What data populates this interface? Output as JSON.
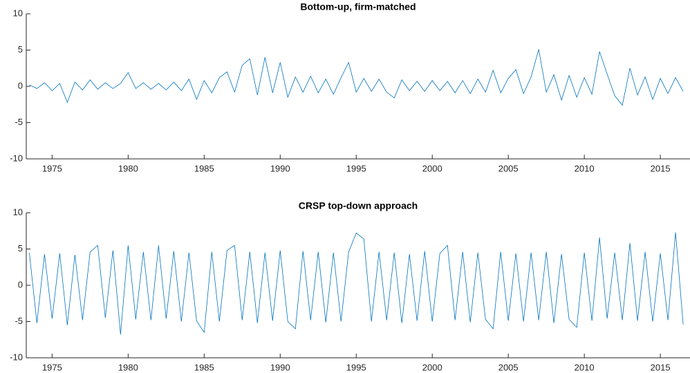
{
  "chart_data": [
    {
      "type": "line",
      "title": "Bottom-up, firm-matched",
      "color": "#0072BD",
      "xlim": [
        1973.3,
        2016.95
      ],
      "xticks": [
        1975,
        1980,
        1985,
        1990,
        1995,
        2000,
        2005,
        2010,
        2015
      ],
      "ylim": [
        -10,
        10
      ],
      "yticks": [
        -10,
        -5,
        0,
        5,
        10
      ],
      "x": [
        1973.5,
        1974,
        1974.5,
        1975,
        1975.5,
        1976,
        1976.5,
        1977,
        1977.5,
        1978,
        1978.5,
        1979,
        1979.5,
        1980,
        1980.5,
        1981,
        1981.5,
        1982,
        1982.5,
        1983,
        1983.5,
        1984,
        1984.5,
        1985,
        1985.5,
        1986,
        1986.5,
        1987,
        1987.5,
        1988,
        1988.5,
        1989,
        1989.5,
        1990,
        1990.5,
        1991,
        1991.5,
        1992,
        1992.5,
        1993,
        1993.5,
        1994,
        1994.5,
        1995,
        1995.5,
        1996,
        1996.5,
        1997,
        1997.5,
        1998,
        1998.5,
        1999,
        1999.5,
        2000,
        2000.5,
        2001,
        2001.5,
        2002,
        2002.5,
        2003,
        2003.5,
        2004,
        2004.5,
        2005,
        2005.5,
        2006,
        2006.5,
        2007,
        2007.5,
        2008,
        2008.5,
        2009,
        2009.5,
        2010,
        2010.5,
        2011,
        2011.5,
        2012,
        2012.5,
        2013,
        2013.5,
        2014,
        2014.5,
        2015,
        2015.5,
        2016,
        2016.5
      ],
      "values": [
        0.2,
        -0.3,
        0.5,
        -0.6,
        0.4,
        -2.2,
        0.6,
        -0.5,
        0.9,
        -0.4,
        0.5,
        -0.3,
        0.4,
        1.9,
        -0.3,
        0.5,
        -0.4,
        0.4,
        -0.5,
        0.6,
        -0.6,
        1.0,
        -1.8,
        0.8,
        -0.9,
        1.2,
        2.0,
        -0.8,
        2.9,
        3.8,
        -1.2,
        4.0,
        -0.9,
        3.3,
        -1.5,
        1.3,
        -0.8,
        1.4,
        -0.9,
        1.0,
        -1.1,
        1.2,
        3.3,
        -0.8,
        1.1,
        -0.7,
        1.0,
        -0.8,
        -1.6,
        0.9,
        -0.6,
        0.7,
        -0.7,
        0.8,
        -0.6,
        0.7,
        -0.9,
        0.8,
        -1.0,
        1.0,
        -0.8,
        2.2,
        -0.9,
        1.1,
        2.3,
        -1.0,
        1.3,
        5.1,
        -0.8,
        1.6,
        -1.9,
        1.5,
        -1.5,
        1.2,
        -1.1,
        4.8,
        1.7,
        -1.3,
        -2.6,
        2.5,
        -1.2,
        1.3,
        -1.8,
        1.1,
        -1.0,
        1.2,
        -0.7
      ]
    },
    {
      "type": "line",
      "title": "CRSP top-down approach",
      "color": "#0072BD",
      "xlim": [
        1973.3,
        2016.95
      ],
      "xticks": [
        1975,
        1980,
        1985,
        1990,
        1995,
        2000,
        2005,
        2010,
        2015
      ],
      "ylim": [
        -10,
        10
      ],
      "yticks": [
        -10,
        -5,
        0,
        5,
        10
      ],
      "x": [
        1973.5,
        1974,
        1974.5,
        1975,
        1975.5,
        1976,
        1976.5,
        1977,
        1977.5,
        1978,
        1978.5,
        1979,
        1979.5,
        1980,
        1980.5,
        1981,
        1981.5,
        1982,
        1982.5,
        1983,
        1983.5,
        1984,
        1984.5,
        1985,
        1985.5,
        1986,
        1986.5,
        1987,
        1987.5,
        1988,
        1988.5,
        1989,
        1989.5,
        1990,
        1990.5,
        1991,
        1991.5,
        1992,
        1992.5,
        1993,
        1993.5,
        1994,
        1994.5,
        1995,
        1995.5,
        1996,
        1996.5,
        1997,
        1997.5,
        1998,
        1998.5,
        1999,
        1999.5,
        2000,
        2000.5,
        2001,
        2001.5,
        2002,
        2002.5,
        2003,
        2003.5,
        2004,
        2004.5,
        2005,
        2005.5,
        2006,
        2006.5,
        2007,
        2007.5,
        2008,
        2008.5,
        2009,
        2009.5,
        2010,
        2010.5,
        2011,
        2011.5,
        2012,
        2012.5,
        2013,
        2013.5,
        2014,
        2014.5,
        2015,
        2015.5,
        2016,
        2016.5
      ],
      "values": [
        4.5,
        -5.2,
        4.3,
        -4.6,
        4.4,
        -5.5,
        4.2,
        -4.8,
        4.6,
        5.5,
        -4.5,
        4.8,
        -6.8,
        5.5,
        -4.7,
        4.6,
        -4.8,
        5.5,
        -4.6,
        4.7,
        -5.0,
        4.5,
        -4.9,
        -6.5,
        4.6,
        -5.0,
        4.8,
        5.5,
        -4.8,
        4.6,
        -5.2,
        4.5,
        -4.9,
        4.8,
        -5.0,
        -6.0,
        4.7,
        -4.8,
        4.6,
        -5.1,
        4.5,
        -5.0,
        4.6,
        7.2,
        6.4,
        -5.0,
        4.6,
        -4.8,
        4.5,
        -5.2,
        4.3,
        -4.9,
        4.7,
        -5.0,
        4.4,
        5.5,
        -4.8,
        4.6,
        -5.1,
        4.5,
        -4.7,
        -6.0,
        4.6,
        -4.9,
        4.4,
        -5.0,
        4.5,
        -4.8,
        4.6,
        -5.2,
        4.3,
        -4.7,
        -5.8,
        4.5,
        -4.9,
        6.6,
        -4.6,
        4.5,
        -4.8,
        5.8,
        -4.9,
        4.6,
        -5.0,
        4.4,
        -4.8,
        7.3,
        -5.4
      ]
    }
  ]
}
